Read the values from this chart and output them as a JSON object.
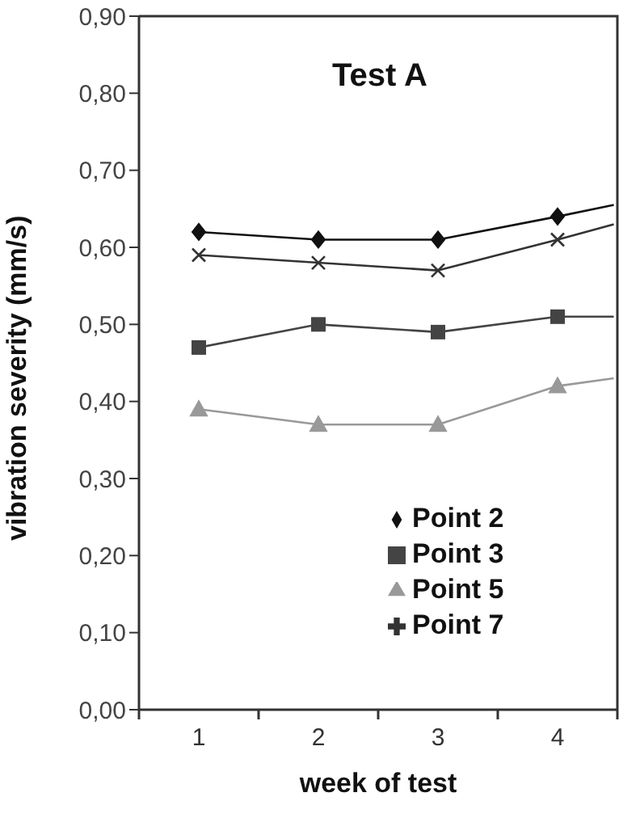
{
  "chart_data": {
    "type": "line",
    "title": "Test A",
    "xlabel": "week of test",
    "ylabel": "vibration severity (mm/s)",
    "x": [
      1,
      2,
      3,
      4,
      4.47
    ],
    "xlim": [
      0.5,
      4.5
    ],
    "xticks": [
      {
        "value": 0.5,
        "label": null
      },
      1,
      {
        "value": 1.5,
        "label": null
      },
      2,
      {
        "value": 2.5,
        "label": null
      },
      3,
      {
        "value": 3.5,
        "label": null
      },
      4,
      {
        "value": 4.5,
        "label": null
      }
    ],
    "ylim": [
      0,
      0.9
    ],
    "yticks": [
      {
        "value": 0,
        "label": "0,00"
      },
      {
        "value": 0.1,
        "label": "0,10"
      },
      {
        "value": 0.2,
        "label": "0,20"
      },
      {
        "value": 0.3,
        "label": "0,30"
      },
      {
        "value": 0.4,
        "label": "0,40"
      },
      {
        "value": 0.5,
        "label": "0,50"
      },
      {
        "value": 0.6,
        "label": "0,60"
      },
      {
        "value": 0.7,
        "label": "0,70"
      },
      {
        "value": 0.8,
        "label": "0,80"
      },
      {
        "value": 0.9,
        "label": "0,90"
      }
    ],
    "grid": false,
    "legend": "bottom right",
    "series": [
      {
        "name": "Point 2",
        "color": "#111111",
        "marker": "diamond",
        "values": [
          0.62,
          0.61,
          0.61,
          0.64,
          0.655
        ]
      },
      {
        "name": "Point 3",
        "color": "#444444",
        "marker": "square",
        "values": [
          0.47,
          0.5,
          0.49,
          0.51,
          0.51
        ]
      },
      {
        "name": "Point 5",
        "color": "#999999",
        "marker": "triangle",
        "values": [
          0.39,
          0.37,
          0.37,
          0.42,
          0.43
        ]
      },
      {
        "name": "Point 7",
        "color": "#333333",
        "marker": "cross",
        "values": [
          0.59,
          0.58,
          0.57,
          0.61,
          0.63
        ]
      }
    ]
  }
}
